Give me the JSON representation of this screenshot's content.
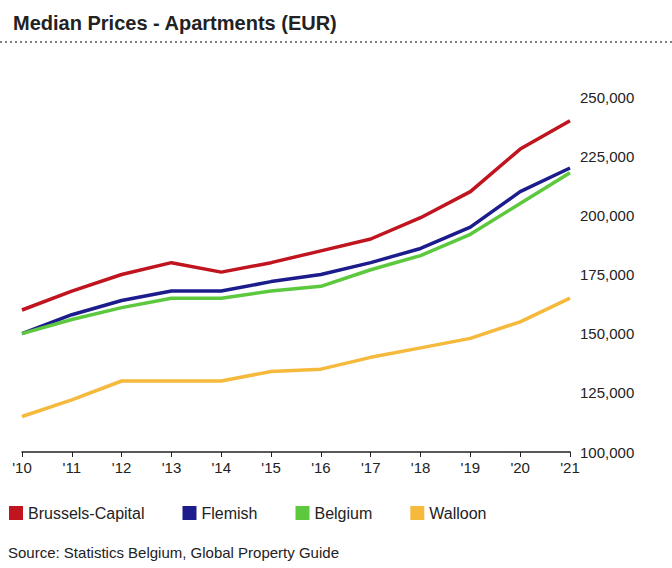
{
  "chart_data": {
    "type": "line",
    "title": "Median Prices - Apartments (EUR)",
    "source": "Source: Statistics Belgium, Global Property Guide",
    "categories": [
      "'10",
      "'11",
      "'12",
      "'13",
      "'14",
      "'15",
      "'16",
      "'17",
      "'18",
      "'19",
      "'20",
      "'21"
    ],
    "series": [
      {
        "name": "Brussels-Capital",
        "color": "#c0141e",
        "values": [
          160000,
          168000,
          175000,
          180000,
          176000,
          180000,
          185000,
          190000,
          199000,
          210000,
          228000,
          240000
        ]
      },
      {
        "name": "Flemish",
        "color": "#1c1c8c",
        "values": [
          150000,
          158000,
          164000,
          168000,
          168000,
          172000,
          175000,
          180000,
          186000,
          195000,
          210000,
          220000
        ]
      },
      {
        "name": "Belgium",
        "color": "#5cc83e",
        "values": [
          150000,
          156000,
          161000,
          165000,
          165000,
          168000,
          170000,
          177000,
          183000,
          192000,
          205000,
          218000
        ]
      },
      {
        "name": "Walloon",
        "color": "#f5b93c",
        "values": [
          115000,
          122000,
          130000,
          130000,
          130000,
          134000,
          135000,
          140000,
          144000,
          148000,
          155000,
          165000
        ]
      }
    ],
    "ylim": [
      100000,
      250000
    ],
    "yticks": [
      {
        "value": 100000,
        "label": "100,000"
      },
      {
        "value": 125000,
        "label": "125,000"
      },
      {
        "value": 150000,
        "label": "150,000"
      },
      {
        "value": 175000,
        "label": "175,000"
      },
      {
        "value": 200000,
        "label": "200,000"
      },
      {
        "value": 225000,
        "label": "225,000"
      },
      {
        "value": 250000,
        "label": "250,000"
      }
    ],
    "grid": false,
    "legend": "bottom"
  }
}
